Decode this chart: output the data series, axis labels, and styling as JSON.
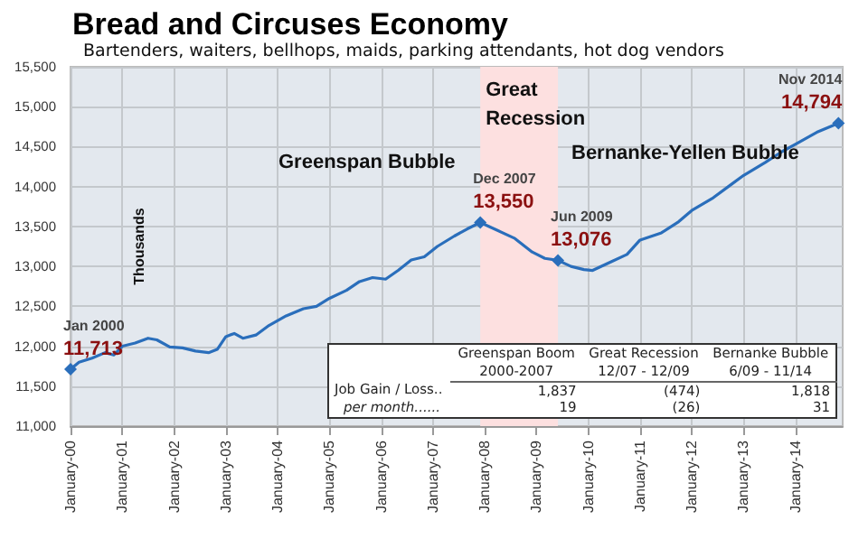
{
  "chart_data": {
    "type": "line",
    "title": "Bread and Circuses Economy",
    "subtitle": "Bartenders, waiters, bellhops, maids, parking attendants, hot dog vendors",
    "ylabel": "Thousands",
    "x": [
      "2000-01",
      "2000-03",
      "2000-06",
      "2000-09",
      "2000-11",
      "2001-01",
      "2001-04",
      "2001-07",
      "2001-09",
      "2001-12",
      "2002-03",
      "2002-06",
      "2002-09",
      "2002-11",
      "2003-01",
      "2003-03",
      "2003-05",
      "2003-08",
      "2003-11",
      "2004-03",
      "2004-07",
      "2004-10",
      "2005-01",
      "2005-05",
      "2005-08",
      "2005-11",
      "2006-02",
      "2006-05",
      "2006-08",
      "2006-11",
      "2007-02",
      "2007-06",
      "2007-09",
      "2007-12",
      "2008-04",
      "2008-08",
      "2008-12",
      "2009-03",
      "2009-06",
      "2009-09",
      "2009-12",
      "2010-02",
      "2010-06",
      "2010-10",
      "2011-01",
      "2011-06",
      "2011-10",
      "2012-01",
      "2012-06",
      "2012-10",
      "2013-01",
      "2013-06",
      "2013-10",
      "2014-01",
      "2014-06",
      "2014-11"
    ],
    "series": [
      {
        "color": "#2a6ebb",
        "values": [
          11713,
          11800,
          11850,
          11920,
          11890,
          12000,
          12040,
          12100,
          12080,
          11990,
          11980,
          11940,
          11920,
          11960,
          12120,
          12160,
          12100,
          12140,
          12260,
          12380,
          12470,
          12500,
          12600,
          12700,
          12810,
          12860,
          12840,
          12950,
          13080,
          13120,
          13250,
          13380,
          13470,
          13550,
          13450,
          13350,
          13180,
          13100,
          13076,
          13000,
          12960,
          12950,
          13050,
          13150,
          13330,
          13420,
          13560,
          13700,
          13860,
          14020,
          14140,
          14300,
          14440,
          14530,
          14680,
          14794
        ],
        "value_labels": [
          "11,713",
          null,
          null,
          null,
          null,
          null,
          null,
          null,
          null,
          null,
          null,
          null,
          null,
          null,
          null,
          null,
          null,
          null,
          null,
          null,
          null,
          null,
          null,
          null,
          null,
          null,
          null,
          null,
          null,
          null,
          null,
          null,
          null,
          "13,550",
          null,
          null,
          null,
          null,
          "13,076",
          null,
          null,
          null,
          null,
          null,
          null,
          null,
          null,
          null,
          null,
          null,
          null,
          null,
          null,
          null,
          null,
          "14,794"
        ]
      }
    ],
    "xlim": [
      "2000-01",
      "2014-12"
    ],
    "xticks": [
      {
        "value": "2000-01",
        "label": "January-00"
      },
      {
        "value": "2001-01",
        "label": "January-01"
      },
      {
        "value": "2002-01",
        "label": "January-02"
      },
      {
        "value": "2003-01",
        "label": "January-03"
      },
      {
        "value": "2004-01",
        "label": "January-04"
      },
      {
        "value": "2005-01",
        "label": "January-05"
      },
      {
        "value": "2006-01",
        "label": "January-06"
      },
      {
        "value": "2007-01",
        "label": "January-07"
      },
      {
        "value": "2008-01",
        "label": "January-08"
      },
      {
        "value": "2009-01",
        "label": "January-09"
      },
      {
        "value": "2010-01",
        "label": "January-10"
      },
      {
        "value": "2011-01",
        "label": "January-11"
      },
      {
        "value": "2012-01",
        "label": "January-12"
      },
      {
        "value": "2013-01",
        "label": "January-13"
      },
      {
        "value": "2014-01",
        "label": "January-14"
      }
    ],
    "ylim": [
      11000,
      15500
    ],
    "yticks": [
      {
        "value": 11000,
        "label": "11,000"
      },
      {
        "value": 11500,
        "label": "11,500"
      },
      {
        "value": 12000,
        "label": "12,000"
      },
      {
        "value": 12500,
        "label": "12,500"
      },
      {
        "value": 13000,
        "label": "13,000"
      },
      {
        "value": 13500,
        "label": "13,500"
      },
      {
        "value": 14000,
        "label": "14,000"
      },
      {
        "value": 14500,
        "label": "14,500"
      },
      {
        "value": 15000,
        "label": "15,000"
      },
      {
        "value": 15500,
        "label": "15,500"
      }
    ],
    "bands": [
      {
        "axis": "x",
        "from": "2007-12",
        "to": "2009-06",
        "label": "Great Recession",
        "color": "#fde0e0"
      }
    ],
    "annotations": [
      {
        "text": "Jan 2000",
        "x": "2000-01",
        "y": 11713
      },
      {
        "text": "Dec 2007",
        "x": "2007-12",
        "y": 13550
      },
      {
        "text": "Jun 2009",
        "x": "2009-06",
        "y": 13076
      },
      {
        "text": "Nov 2014",
        "x": "2014-11",
        "y": 14794
      },
      "Greenspan Bubble",
      "Bernanke-Yellen Bubble",
      "Greenspan Boom",
      "Great Recession",
      "Bernanke Bubble",
      "2000-2007",
      "12/07 - 12/09",
      "6/09 - 11/14",
      "Job Gain / Loss..",
      "1,837",
      "(474)",
      "1,818",
      "per month......",
      "19",
      "(26)",
      "31"
    ],
    "grid": true,
    "marker": "none",
    "line_style": "solid"
  }
}
